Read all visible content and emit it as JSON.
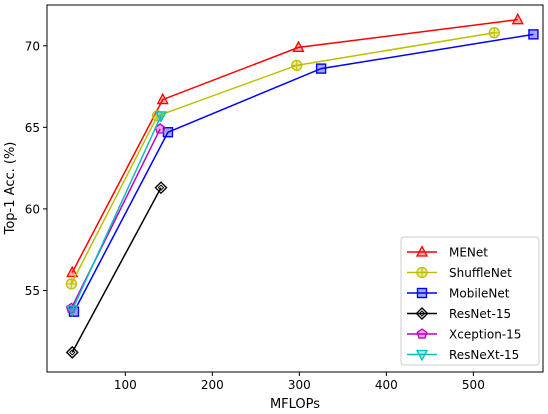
{
  "chart_data": {
    "type": "line",
    "title": "",
    "xlabel": "MFLOPs",
    "ylabel": "Top-1 Acc. (%)",
    "xlim": [
      10,
      580
    ],
    "ylim": [
      50,
      72.5
    ],
    "xticks": [
      100,
      200,
      300,
      400,
      500
    ],
    "yticks": [
      55,
      60,
      65,
      70
    ],
    "grid": false,
    "legend_position": "bottom-right",
    "series": [
      {
        "name": "MENet",
        "color": "#ff0000",
        "marker": "triangle-up",
        "x": [
          39,
          143,
          299,
          551
        ],
        "y": [
          56.1,
          66.7,
          69.9,
          71.6
        ]
      },
      {
        "name": "ShuffleNet",
        "color": "#bfbf00",
        "marker": "circle-plus",
        "x": [
          38,
          137,
          297,
          524
        ],
        "y": [
          55.4,
          65.7,
          68.8,
          70.8
        ]
      },
      {
        "name": "MobileNet",
        "color": "#0000ff",
        "marker": "square",
        "x": [
          41,
          149,
          325,
          569
        ],
        "y": [
          53.7,
          64.7,
          68.6,
          70.7
        ]
      },
      {
        "name": "ResNet-15",
        "color": "#000000",
        "marker": "diamond",
        "x": [
          39,
          141
        ],
        "y": [
          51.2,
          61.3
        ]
      },
      {
        "name": "Xception-15",
        "color": "#bf00bf",
        "marker": "pentagon",
        "x": [
          38,
          140
        ],
        "y": [
          53.9,
          64.9
        ]
      },
      {
        "name": "ResNeXt-15",
        "color": "#00bfbf",
        "marker": "triangle-down",
        "x": [
          39,
          141
        ],
        "y": [
          53.8,
          65.7
        ]
      }
    ]
  }
}
